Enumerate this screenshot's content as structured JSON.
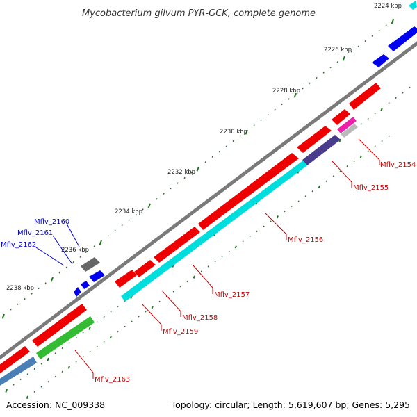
{
  "title": "Mycobacterium gilvum PYR-GCK, complete genome",
  "footer": {
    "accession": "Accession: NC_009338",
    "summary": "Topology: circular; Length: 5,619,607 bp; Genes: 5,295"
  },
  "colors": {
    "backbone": "#7a7a7a",
    "tick": "#1f7a1f",
    "label_red": "#cc0000",
    "label_blue": "#0000cc"
  },
  "ticks": [
    "2224 kbp",
    "2226 kbp",
    "2228 kbp",
    "2230 kbp",
    "2232 kbp",
    "2234 kbp",
    "2236 kbp",
    "2238 kbp"
  ],
  "genes": [
    {
      "id": "Mflv_2154",
      "color": "#cc0000"
    },
    {
      "id": "Mflv_2155",
      "color": "#cc0000"
    },
    {
      "id": "Mflv_2156",
      "color": "#cc0000"
    },
    {
      "id": "Mflv_2157",
      "color": "#cc0000"
    },
    {
      "id": "Mflv_2158",
      "color": "#cc0000"
    },
    {
      "id": "Mflv_2159",
      "color": "#cc0000"
    },
    {
      "id": "Mflv_2160",
      "color": "#0000cc"
    },
    {
      "id": "Mflv_2161",
      "color": "#0000cc"
    },
    {
      "id": "Mflv_2162",
      "color": "#0000cc"
    },
    {
      "id": "Mflv_2163",
      "color": "#cc0000"
    }
  ]
}
